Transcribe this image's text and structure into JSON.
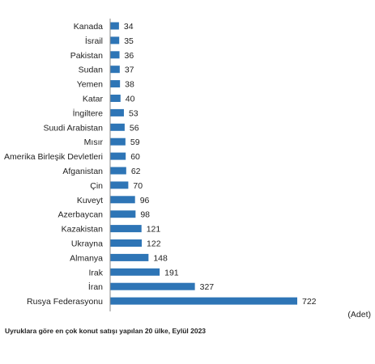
{
  "chart_data": {
    "type": "bar",
    "orientation": "horizontal",
    "categories": [
      "Kanada",
      "İsrail",
      "Pakistan",
      "Sudan",
      "Yemen",
      "Katar",
      "İngiltere",
      "Suudi Arabistan",
      "Mısır",
      "Amerika Birleşik Devletleri",
      "Afganistan",
      "Çin",
      "Kuveyt",
      "Azerbaycan",
      "Kazakistan",
      "Ukrayna",
      "Almanya",
      "Irak",
      "İran",
      "Rusya Federasyonu"
    ],
    "values": [
      34,
      35,
      36,
      37,
      38,
      40,
      53,
      56,
      59,
      60,
      62,
      70,
      96,
      98,
      121,
      122,
      148,
      191,
      327,
      722
    ],
    "xlim": [
      0,
      722
    ],
    "unit_label": "(Adet)",
    "grid": false,
    "bar_color": "#2e75b6",
    "caption": "Uyruklara göre en çok konut satışı yapılan 20 ülke, Eylül 2023"
  }
}
